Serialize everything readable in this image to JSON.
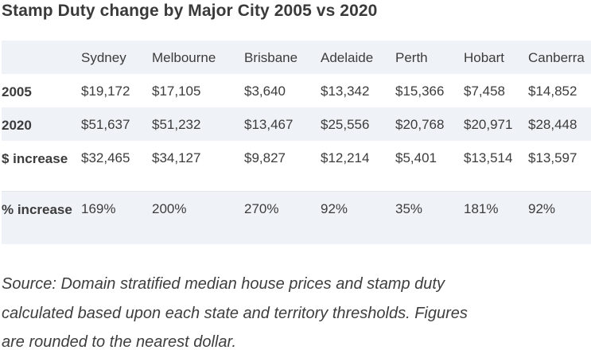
{
  "title": "Stamp Duty change by Major City 2005 vs 2020",
  "table": {
    "columns": [
      "",
      "Sydney",
      "Melbourne",
      "Brisbane",
      "Adelaide",
      "Perth",
      "Hobart",
      "Canberra"
    ],
    "rows": [
      {
        "label": "2005",
        "values": [
          "$19,172",
          "$17,105",
          "$3,640",
          "$13,342",
          "$15,366",
          "$7,458",
          "$14,852"
        ]
      },
      {
        "label": "2020",
        "values": [
          "$51,637",
          "$51,232",
          "$13,467",
          "$25,556",
          "$20,768",
          "$20,971",
          "$28,448"
        ]
      },
      {
        "label": "$ increase",
        "values": [
          "$32,465",
          "$34,127",
          "$9,827",
          "$12,214",
          "$5,401",
          "$13,514",
          "$13,597"
        ]
      },
      {
        "label": "% increase",
        "values": [
          "169%",
          "200%",
          "270%",
          "92%",
          "35%",
          "181%",
          "92%"
        ]
      }
    ]
  },
  "source": "Source: Domain stratified median house prices and stamp duty\ncalculated based upon each state and territory thresholds. Figures\nare rounded to the nearest dollar."
}
